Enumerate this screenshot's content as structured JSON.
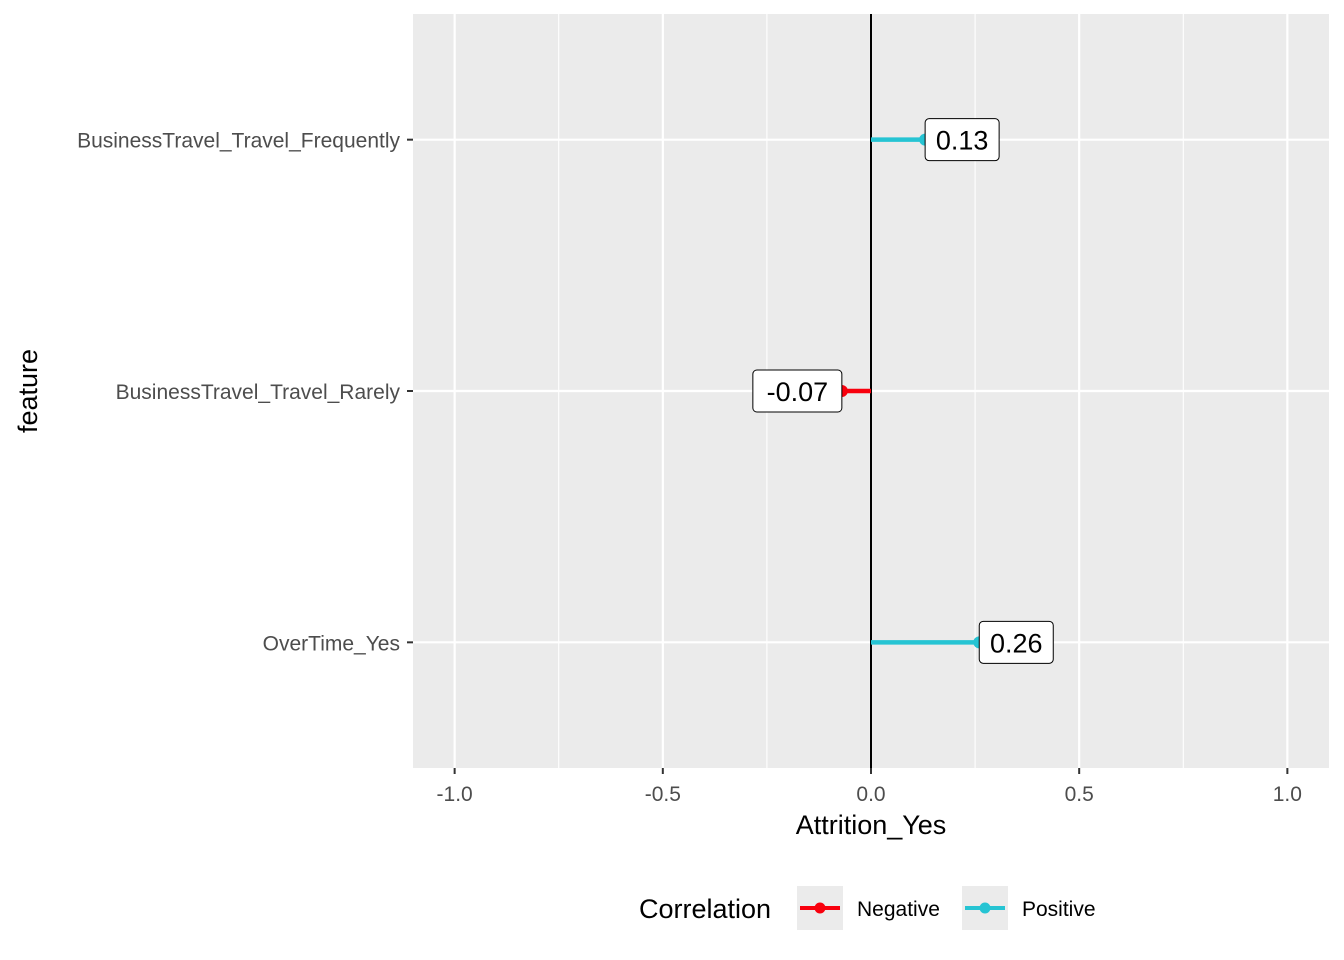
{
  "chart_data": {
    "type": "lollipop",
    "title": "",
    "xlabel": "Attrition_Yes",
    "ylabel": "feature",
    "xlim": [
      -1.1,
      1.1
    ],
    "x_ticks": [
      -1.0,
      -0.5,
      0.0,
      0.5,
      1.0
    ],
    "x_tick_labels": [
      "-1.0",
      "-0.5",
      "0.0",
      "0.5",
      "1.0"
    ],
    "grid": true,
    "reference_line": 0,
    "categories": [
      "BusinessTravel_Travel_Frequently",
      "BusinessTravel_Travel_Rarely",
      "OverTime_Yes"
    ],
    "values": [
      0.13,
      -0.07,
      0.26
    ],
    "labels": [
      "0.13",
      "-0.07",
      "0.26"
    ],
    "groups": [
      "Positive",
      "Negative",
      "Positive"
    ],
    "legend": {
      "title": "Correlation",
      "position": "bottom",
      "entries": [
        {
          "name": "Negative",
          "color": "#f8000d"
        },
        {
          "name": "Positive",
          "color": "#26c4d3"
        }
      ]
    },
    "colors": {
      "Negative": "#f8000d",
      "Positive": "#26c4d3"
    }
  }
}
